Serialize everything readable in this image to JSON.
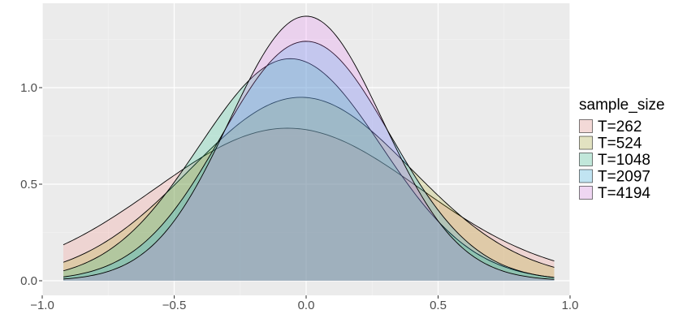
{
  "chart_data": {
    "type": "area",
    "title": "",
    "xlabel": "",
    "ylabel": "",
    "xlim": [
      -1.0,
      1.0
    ],
    "ylim": [
      0,
      1.37
    ],
    "x_ticks": [
      -1.0,
      -0.5,
      0.0,
      0.5,
      1.0
    ],
    "x_tick_labels": [
      "−1.0",
      "−0.5",
      "0.0",
      "0.5",
      "1.0"
    ],
    "y_ticks": [
      0.0,
      0.5,
      1.0
    ],
    "y_tick_labels": [
      "0.0",
      "0.5",
      "1.0"
    ],
    "x_range_of_curves": [
      -0.92,
      0.94
    ],
    "grid": true,
    "legend": {
      "title": "sample_size",
      "placement": "right"
    },
    "series": [
      {
        "name": "T=262",
        "mean": -0.07,
        "sd": 0.5,
        "peak": 0.79,
        "color": "#F8766D"
      },
      {
        "name": "T=524",
        "mean": -0.02,
        "sd": 0.42,
        "peak": 0.95,
        "color": "#A3A500"
      },
      {
        "name": "T=1048",
        "mean": -0.06,
        "sd": 0.345,
        "peak": 1.15,
        "color": "#00BF7D"
      },
      {
        "name": "T=2097",
        "mean": 0.0,
        "sd": 0.32,
        "peak": 1.24,
        "color": "#00B0F6"
      },
      {
        "name": "T=4194",
        "mean": 0.0,
        "sd": 0.29,
        "peak": 1.37,
        "color": "#E76BF3"
      }
    ]
  }
}
